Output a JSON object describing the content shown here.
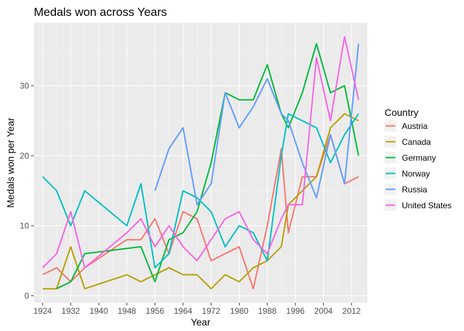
{
  "chart_data": {
    "type": "line",
    "title": "Medals won across Years",
    "xlabel": "Year",
    "ylabel": "Medals won per Year",
    "xlim": [
      1921.5,
      2016.5
    ],
    "ylim": [
      -1,
      39
    ],
    "x_ticks": [
      1924,
      1932,
      1940,
      1948,
      1956,
      1964,
      1972,
      1980,
      1988,
      1996,
      2004,
      2012
    ],
    "y_ticks": [
      0,
      10,
      20,
      30
    ],
    "grid": true,
    "legend": {
      "title": "Country",
      "position": "right"
    },
    "series": [
      {
        "name": "Austria",
        "color": "#F8766D",
        "points": [
          [
            1924,
            3
          ],
          [
            1928,
            4
          ],
          [
            1932,
            2
          ],
          [
            1936,
            4
          ],
          [
            1948,
            8
          ],
          [
            1952,
            8
          ],
          [
            1956,
            11
          ],
          [
            1960,
            6
          ],
          [
            1964,
            12
          ],
          [
            1968,
            11
          ],
          [
            1972,
            5
          ],
          [
            1976,
            6
          ],
          [
            1980,
            7
          ],
          [
            1984,
            1
          ],
          [
            1988,
            10
          ],
          [
            1992,
            21
          ],
          [
            1994,
            9
          ],
          [
            1998,
            17
          ],
          [
            2002,
            17
          ],
          [
            2006,
            23
          ],
          [
            2010,
            16
          ],
          [
            2014,
            17
          ]
        ]
      },
      {
        "name": "Canada",
        "color": "#B79F00",
        "points": [
          [
            1924,
            1
          ],
          [
            1928,
            1
          ],
          [
            1932,
            7
          ],
          [
            1936,
            1
          ],
          [
            1948,
            3
          ],
          [
            1952,
            2
          ],
          [
            1956,
            3
          ],
          [
            1960,
            4
          ],
          [
            1964,
            3
          ],
          [
            1968,
            3
          ],
          [
            1972,
            1
          ],
          [
            1976,
            3
          ],
          [
            1980,
            2
          ],
          [
            1984,
            4
          ],
          [
            1988,
            5
          ],
          [
            1992,
            7
          ],
          [
            1994,
            13
          ],
          [
            1998,
            15
          ],
          [
            2002,
            17
          ],
          [
            2006,
            24
          ],
          [
            2010,
            26
          ],
          [
            2014,
            25
          ]
        ]
      },
      {
        "name": "Germany",
        "color": "#00BA38",
        "points": [
          [
            1928,
            1
          ],
          [
            1932,
            2
          ],
          [
            1936,
            6
          ],
          [
            1952,
            7
          ],
          [
            1956,
            2
          ],
          [
            1960,
            8
          ],
          [
            1964,
            9
          ],
          [
            1968,
            12
          ],
          [
            1972,
            19
          ],
          [
            1976,
            29
          ],
          [
            1980,
            28
          ],
          [
            1984,
            28
          ],
          [
            1988,
            33
          ],
          [
            1992,
            26
          ],
          [
            1994,
            24
          ],
          [
            1998,
            29
          ],
          [
            2002,
            36
          ],
          [
            2006,
            29
          ],
          [
            2010,
            30
          ],
          [
            2014,
            20
          ]
        ]
      },
      {
        "name": "Norway",
        "color": "#00BFC4",
        "points": [
          [
            1924,
            17
          ],
          [
            1928,
            15
          ],
          [
            1932,
            10
          ],
          [
            1936,
            15
          ],
          [
            1948,
            10
          ],
          [
            1952,
            16
          ],
          [
            1956,
            4
          ],
          [
            1960,
            6
          ],
          [
            1964,
            15
          ],
          [
            1968,
            14
          ],
          [
            1972,
            12
          ],
          [
            1976,
            7
          ],
          [
            1980,
            10
          ],
          [
            1984,
            9
          ],
          [
            1988,
            5
          ],
          [
            1992,
            20
          ],
          [
            1994,
            26
          ],
          [
            1998,
            25
          ],
          [
            2002,
            24
          ],
          [
            2006,
            19
          ],
          [
            2010,
            23
          ],
          [
            2014,
            26
          ]
        ]
      },
      {
        "name": "Russia",
        "color": "#619CFF",
        "points": [
          [
            1956,
            15
          ],
          [
            1960,
            21
          ],
          [
            1964,
            24
          ],
          [
            1968,
            13
          ],
          [
            1972,
            16
          ],
          [
            1976,
            29
          ],
          [
            1980,
            24
          ],
          [
            1984,
            27
          ],
          [
            1988,
            31
          ],
          [
            1992,
            26
          ],
          [
            1994,
            25
          ],
          [
            1998,
            19
          ],
          [
            2002,
            14
          ],
          [
            2006,
            23
          ],
          [
            2010,
            16
          ],
          [
            2014,
            36
          ]
        ]
      },
      {
        "name": "United States",
        "color": "#F564E3",
        "points": [
          [
            1924,
            4
          ],
          [
            1928,
            6
          ],
          [
            1932,
            12
          ],
          [
            1936,
            4
          ],
          [
            1948,
            9
          ],
          [
            1952,
            11
          ],
          [
            1956,
            7
          ],
          [
            1960,
            10
          ],
          [
            1964,
            7
          ],
          [
            1968,
            5
          ],
          [
            1972,
            8
          ],
          [
            1976,
            11
          ],
          [
            1980,
            12
          ],
          [
            1984,
            8
          ],
          [
            1988,
            6
          ],
          [
            1992,
            11
          ],
          [
            1994,
            13
          ],
          [
            1998,
            13
          ],
          [
            2002,
            34
          ],
          [
            2006,
            25
          ],
          [
            2010,
            37
          ],
          [
            2014,
            28
          ]
        ]
      }
    ]
  }
}
